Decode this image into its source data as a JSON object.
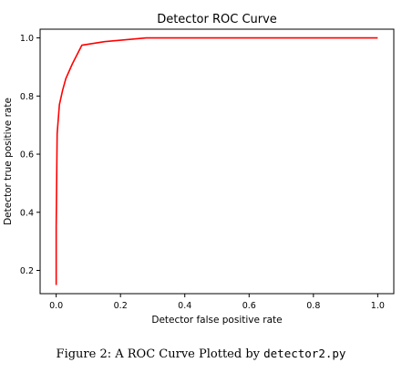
{
  "chart_data": {
    "type": "line",
    "title": "Detector ROC Curve",
    "xlabel": "Detector false positive rate",
    "ylabel": "Detector true positive rate",
    "xlim": [
      -0.05,
      1.05
    ],
    "ylim": [
      0.12,
      1.03
    ],
    "xticks": [
      "0.0",
      "0.2",
      "0.4",
      "0.6",
      "0.8",
      "1.0"
    ],
    "yticks": [
      "0.2",
      "0.4",
      "0.6",
      "0.8",
      "1.0"
    ],
    "grid": false,
    "series": [
      {
        "color": "#ff0000",
        "x": [
          0.0,
          0.0,
          0.003,
          0.01,
          0.02,
          0.03,
          0.05,
          0.08,
          0.15,
          0.28,
          0.5,
          0.75,
          1.0
        ],
        "y": [
          0.15,
          0.35,
          0.67,
          0.77,
          0.82,
          0.86,
          0.91,
          0.975,
          0.987,
          1.0,
          1.0,
          1.0,
          1.0
        ]
      }
    ]
  },
  "caption": {
    "prefix": "Figure 2: A ROC Curve Plotted by ",
    "code": "detector2.py"
  }
}
